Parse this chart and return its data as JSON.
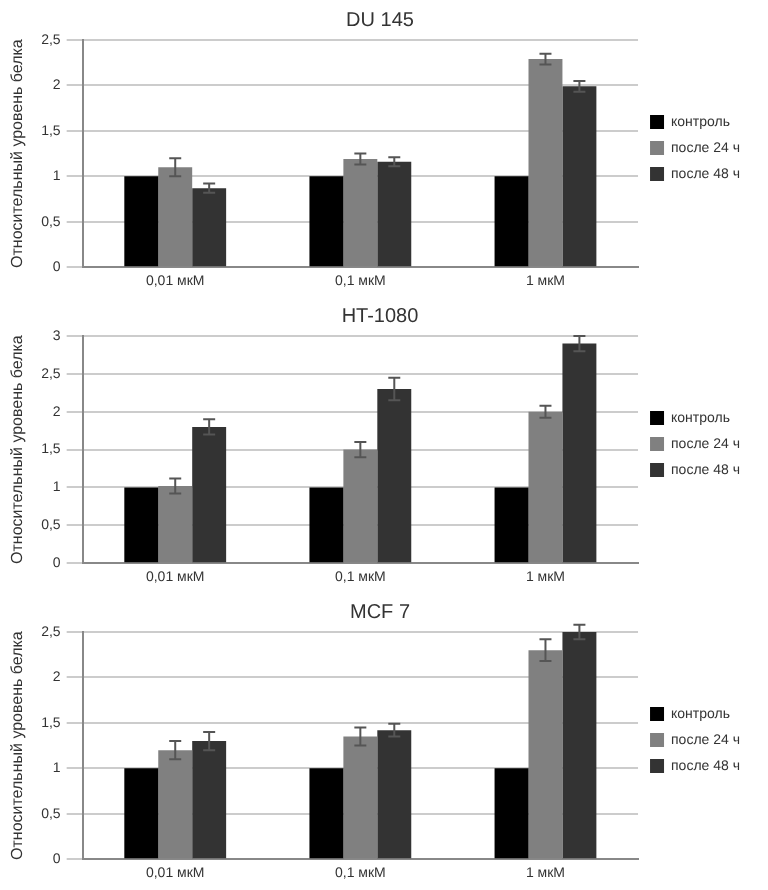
{
  "chart_data": [
    {
      "type": "bar",
      "title": "DU 145",
      "ylabel": "Относительный уровень белка",
      "categories": [
        "0,01 мкМ",
        "0,1 мкМ",
        "1 мкМ"
      ],
      "series": [
        {
          "name": "контроль",
          "color": "#000000",
          "values": [
            1,
            1,
            1
          ]
        },
        {
          "name": "после 24 ч",
          "color": "#808080",
          "values": [
            1.1,
            1.19,
            2.29
          ],
          "errors": [
            0.1,
            0.06,
            0.06
          ]
        },
        {
          "name": "после 48 ч",
          "color": "#333333",
          "values": [
            0.87,
            1.16,
            1.99
          ],
          "errors": [
            0.05,
            0.05,
            0.06
          ]
        }
      ],
      "ylim": [
        0,
        2.5
      ],
      "yticks": [
        0,
        {
          "value": 0.5,
          "label": "0,5"
        },
        1,
        {
          "value": 1.5,
          "label": "1,5"
        },
        2,
        {
          "value": 2.5,
          "label": "2,5"
        }
      ],
      "grid": "y",
      "legend": "right"
    },
    {
      "type": "bar",
      "title": "HT-1080",
      "ylabel": "Относительный уровень белка",
      "categories": [
        "0,01 мкМ",
        "0,1 мкМ",
        "1 мкМ"
      ],
      "series": [
        {
          "name": "контроль",
          "color": "#000000",
          "values": [
            1,
            1,
            1
          ]
        },
        {
          "name": "после 24 ч",
          "color": "#808080",
          "values": [
            1.02,
            1.5,
            2.0
          ],
          "errors": [
            0.1,
            0.1,
            0.08
          ]
        },
        {
          "name": "после 48 ч",
          "color": "#333333",
          "values": [
            1.8,
            2.3,
            2.9
          ],
          "errors": [
            0.1,
            0.15,
            0.1
          ]
        }
      ],
      "ylim": [
        0,
        3
      ],
      "yticks": [
        0,
        {
          "value": 0.5,
          "label": "0,5"
        },
        1,
        {
          "value": 1.5,
          "label": "1,5"
        },
        2,
        {
          "value": 2.5,
          "label": "2,5"
        },
        3
      ],
      "grid": "y",
      "legend": "right"
    },
    {
      "type": "bar",
      "title": "MCF 7",
      "ylabel": "Относительный уровень белка",
      "categories": [
        "0,01 мкМ",
        "0,1 мкМ",
        "1 мкМ"
      ],
      "series": [
        {
          "name": "контроль",
          "color": "#000000",
          "values": [
            1,
            1,
            1
          ]
        },
        {
          "name": "после 24 ч",
          "color": "#808080",
          "values": [
            1.2,
            1.35,
            2.3
          ],
          "errors": [
            0.1,
            0.1,
            0.12
          ]
        },
        {
          "name": "после 48 ч",
          "color": "#333333",
          "values": [
            1.3,
            1.42,
            2.5
          ],
          "errors": [
            0.1,
            0.07,
            0.08
          ]
        }
      ],
      "ylim": [
        0,
        2.5
      ],
      "yticks": [
        0,
        {
          "value": 0.5,
          "label": "0,5"
        },
        1,
        {
          "value": 1.5,
          "label": "1,5"
        },
        2,
        {
          "value": 2.5,
          "label": "2,5"
        }
      ],
      "grid": "y",
      "legend": "right"
    }
  ]
}
